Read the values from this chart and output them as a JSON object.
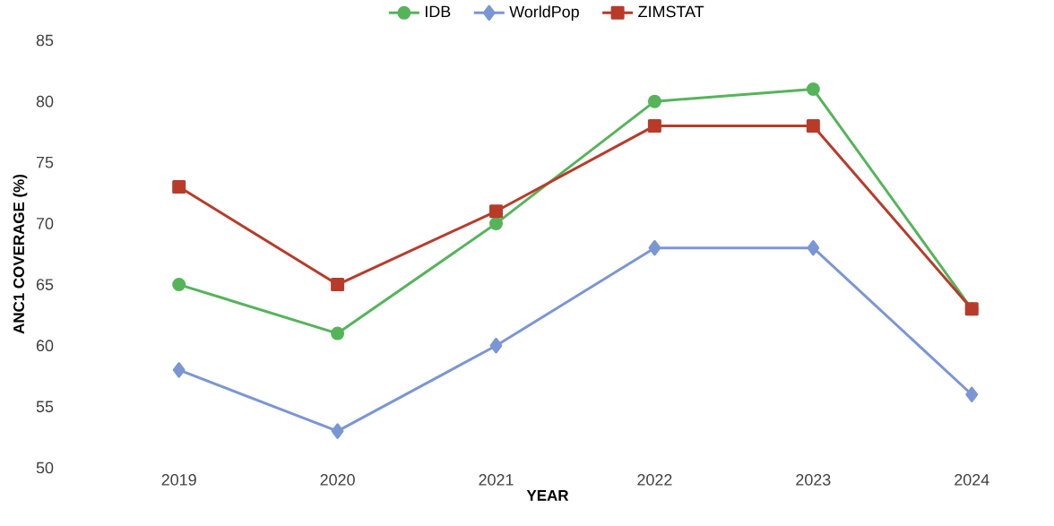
{
  "chart_data": {
    "type": "line",
    "xlabel": "YEAR",
    "ylabel": "ANC1 COVERAGE (%)",
    "categories": [
      "2019",
      "2020",
      "2021",
      "2022",
      "2023",
      "2024"
    ],
    "series": [
      {
        "name": "IDB",
        "color": "#55b45a",
        "marker": "circle",
        "values": [
          65,
          61,
          70,
          80,
          81,
          63
        ]
      },
      {
        "name": "WorldPop",
        "color": "#7b96d4",
        "marker": "diamond",
        "values": [
          58,
          53,
          60,
          68,
          68,
          56
        ]
      },
      {
        "name": "ZIMSTAT",
        "color": "#b83b2a",
        "marker": "square",
        "values": [
          73,
          65,
          71,
          78,
          78,
          63
        ]
      }
    ],
    "ylim": [
      50,
      85
    ],
    "yticks": [
      50,
      55,
      60,
      65,
      70,
      75,
      80,
      85
    ],
    "grid": false,
    "legend": "top",
    "line_style": "solid"
  }
}
